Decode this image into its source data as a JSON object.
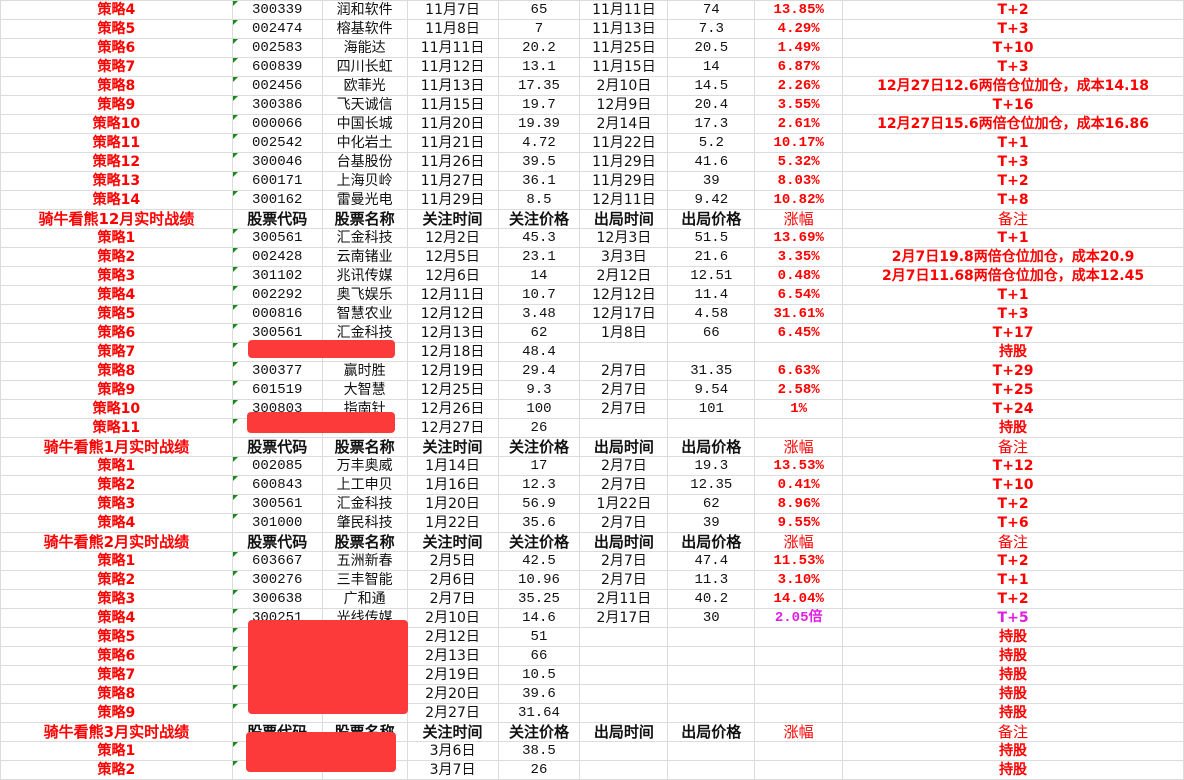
{
  "headers": [
    "股票代码",
    "股票名称",
    "关注时间",
    "关注价格",
    "出局时间",
    "出局价格",
    "涨幅",
    "备注"
  ],
  "colors": {
    "strategy": "#ff0000",
    "gain": "#ff0000",
    "special": "#e020e0",
    "redaction": "#fd3a3a",
    "text_marker": "#1a8a1a"
  },
  "sections": [
    {
      "title": null,
      "rows": [
        [
          "策略4",
          "300339",
          "润和软件",
          "11月7日",
          "65",
          "11月11日",
          "74",
          "13.85%",
          "T+2"
        ],
        [
          "策略5",
          "002474",
          "榕基软件",
          "11月8日",
          "7",
          "11月13日",
          "7.3",
          "4.29%",
          "T+3"
        ],
        [
          "策略6",
          "002583",
          "海能达",
          "11月11日",
          "20.2",
          "11月25日",
          "20.5",
          "1.49%",
          "T+10"
        ],
        [
          "策略7",
          "600839",
          "四川长虹",
          "11月12日",
          "13.1",
          "11月15日",
          "14",
          "6.87%",
          "T+3"
        ],
        [
          "策略8",
          "002456",
          "欧菲光",
          "11月13日",
          "17.35",
          "2月10日",
          "14.5",
          "2.26%",
          "12月27日12.6两倍仓位加仓，成本14.18"
        ],
        [
          "策略9",
          "300386",
          "飞天诚信",
          "11月15日",
          "19.7",
          "12月9日",
          "20.4",
          "3.55%",
          "T+16"
        ],
        [
          "策略10",
          "000066",
          "中国长城",
          "11月20日",
          "19.39",
          "2月14日",
          "17.3",
          "2.61%",
          "12月27日15.6两倍仓位加仓，成本16.86"
        ],
        [
          "策略11",
          "002542",
          "中化岩土",
          "11月21日",
          "4.72",
          "11月22日",
          "5.2",
          "10.17%",
          "T+1"
        ],
        [
          "策略12",
          "300046",
          "台基股份",
          "11月26日",
          "39.5",
          "11月29日",
          "41.6",
          "5.32%",
          "T+3"
        ],
        [
          "策略13",
          "600171",
          "上海贝岭",
          "11月27日",
          "36.1",
          "11月29日",
          "39",
          "8.03%",
          "T+2"
        ],
        [
          "策略14",
          "300162",
          "雷曼光电",
          "11月29日",
          "8.5",
          "12月11日",
          "9.42",
          "10.82%",
          "T+8"
        ]
      ]
    },
    {
      "title": "骑牛看熊12月实时战绩",
      "rows": [
        [
          "策略1",
          "300561",
          "汇金科技",
          "12月2日",
          "45.3",
          "12月3日",
          "51.5",
          "13.69%",
          "T+1"
        ],
        [
          "策略2",
          "002428",
          "云南锗业",
          "12月5日",
          "23.1",
          "3月3日",
          "21.6",
          "3.35%",
          "2月7日19.8两倍仓位加仓，成本20.9"
        ],
        [
          "策略3",
          "301102",
          "兆讯传媒",
          "12月6日",
          "14",
          "2月12日",
          "12.51",
          "0.48%",
          "2月7日11.68两倍仓位加仓，成本12.45"
        ],
        [
          "策略4",
          "002292",
          "奥飞娱乐",
          "12月11日",
          "10.7",
          "12月12日",
          "11.4",
          "6.54%",
          "T+1"
        ],
        [
          "策略5",
          "000816",
          "智慧农业",
          "12月12日",
          "3.48",
          "12月17日",
          "4.58",
          "31.61%",
          "T+3"
        ],
        [
          "策略6",
          "300561",
          "汇金科技",
          "12月13日",
          "62",
          "1月8日",
          "66",
          "6.45%",
          "T+17"
        ],
        [
          "策略7",
          "",
          "",
          "12月18日",
          "48.4",
          "",
          "",
          "",
          "持股"
        ],
        [
          "策略8",
          "300377",
          "赢时胜",
          "12月19日",
          "29.4",
          "2月7日",
          "31.35",
          "6.63%",
          "T+29"
        ],
        [
          "策略9",
          "601519",
          "大智慧",
          "12月25日",
          "9.3",
          "2月7日",
          "9.54",
          "2.58%",
          "T+25"
        ],
        [
          "策略10",
          "300803",
          "指南针",
          "12月26日",
          "100",
          "2月7日",
          "101",
          "1%",
          "T+24"
        ],
        [
          "策略11",
          "",
          "",
          "12月27日",
          "26",
          "",
          "",
          "",
          "持股"
        ]
      ]
    },
    {
      "title": "骑牛看熊1月实时战绩",
      "rows": [
        [
          "策略1",
          "002085",
          "万丰奥威",
          "1月14日",
          "17",
          "2月7日",
          "19.3",
          "13.53%",
          "T+12"
        ],
        [
          "策略2",
          "600843",
          "上工申贝",
          "1月16日",
          "12.3",
          "2月7日",
          "12.35",
          "0.41%",
          "T+10"
        ],
        [
          "策略3",
          "300561",
          "汇金科技",
          "1月20日",
          "56.9",
          "1月22日",
          "62",
          "8.96%",
          "T+2"
        ],
        [
          "策略4",
          "301000",
          "肇民科技",
          "1月22日",
          "35.6",
          "2月7日",
          "39",
          "9.55%",
          "T+6"
        ]
      ]
    },
    {
      "title": "骑牛看熊2月实时战绩",
      "rows": [
        [
          "策略1",
          "603667",
          "五洲新春",
          "2月5日",
          "42.5",
          "2月7日",
          "47.4",
          "11.53%",
          "T+2"
        ],
        [
          "策略2",
          "300276",
          "三丰智能",
          "2月6日",
          "10.96",
          "2月7日",
          "11.3",
          "3.10%",
          "T+1"
        ],
        [
          "策略3",
          "300638",
          "广和通",
          "2月7日",
          "35.25",
          "2月11日",
          "40.2",
          "14.04%",
          "T+2"
        ],
        [
          "策略4",
          "300251",
          "光线传媒",
          "2月10日",
          "14.6",
          "2月17日",
          "30",
          "2.05倍",
          "T+5"
        ],
        [
          "策略5",
          "",
          "",
          "2月12日",
          "51",
          "",
          "",
          "",
          "持股"
        ],
        [
          "策略6",
          "",
          "",
          "2月13日",
          "66",
          "",
          "",
          "",
          "持股"
        ],
        [
          "策略7",
          "",
          "",
          "2月19日",
          "10.5",
          "",
          "",
          "",
          "持股"
        ],
        [
          "策略8",
          "",
          "",
          "2月20日",
          "39.6",
          "",
          "",
          "",
          "持股"
        ],
        [
          "策略9",
          "",
          "",
          "2月27日",
          "31.64",
          "",
          "",
          "",
          "持股"
        ]
      ]
    },
    {
      "title": "骑牛看熊3月实时战绩",
      "rows": [
        [
          "策略1",
          "",
          "",
          "3月6日",
          "38.5",
          "",
          "",
          "",
          "持股"
        ],
        [
          "策略2",
          "",
          "",
          "3月7日",
          "26",
          "",
          "",
          "",
          "持股"
        ]
      ]
    }
  ]
}
